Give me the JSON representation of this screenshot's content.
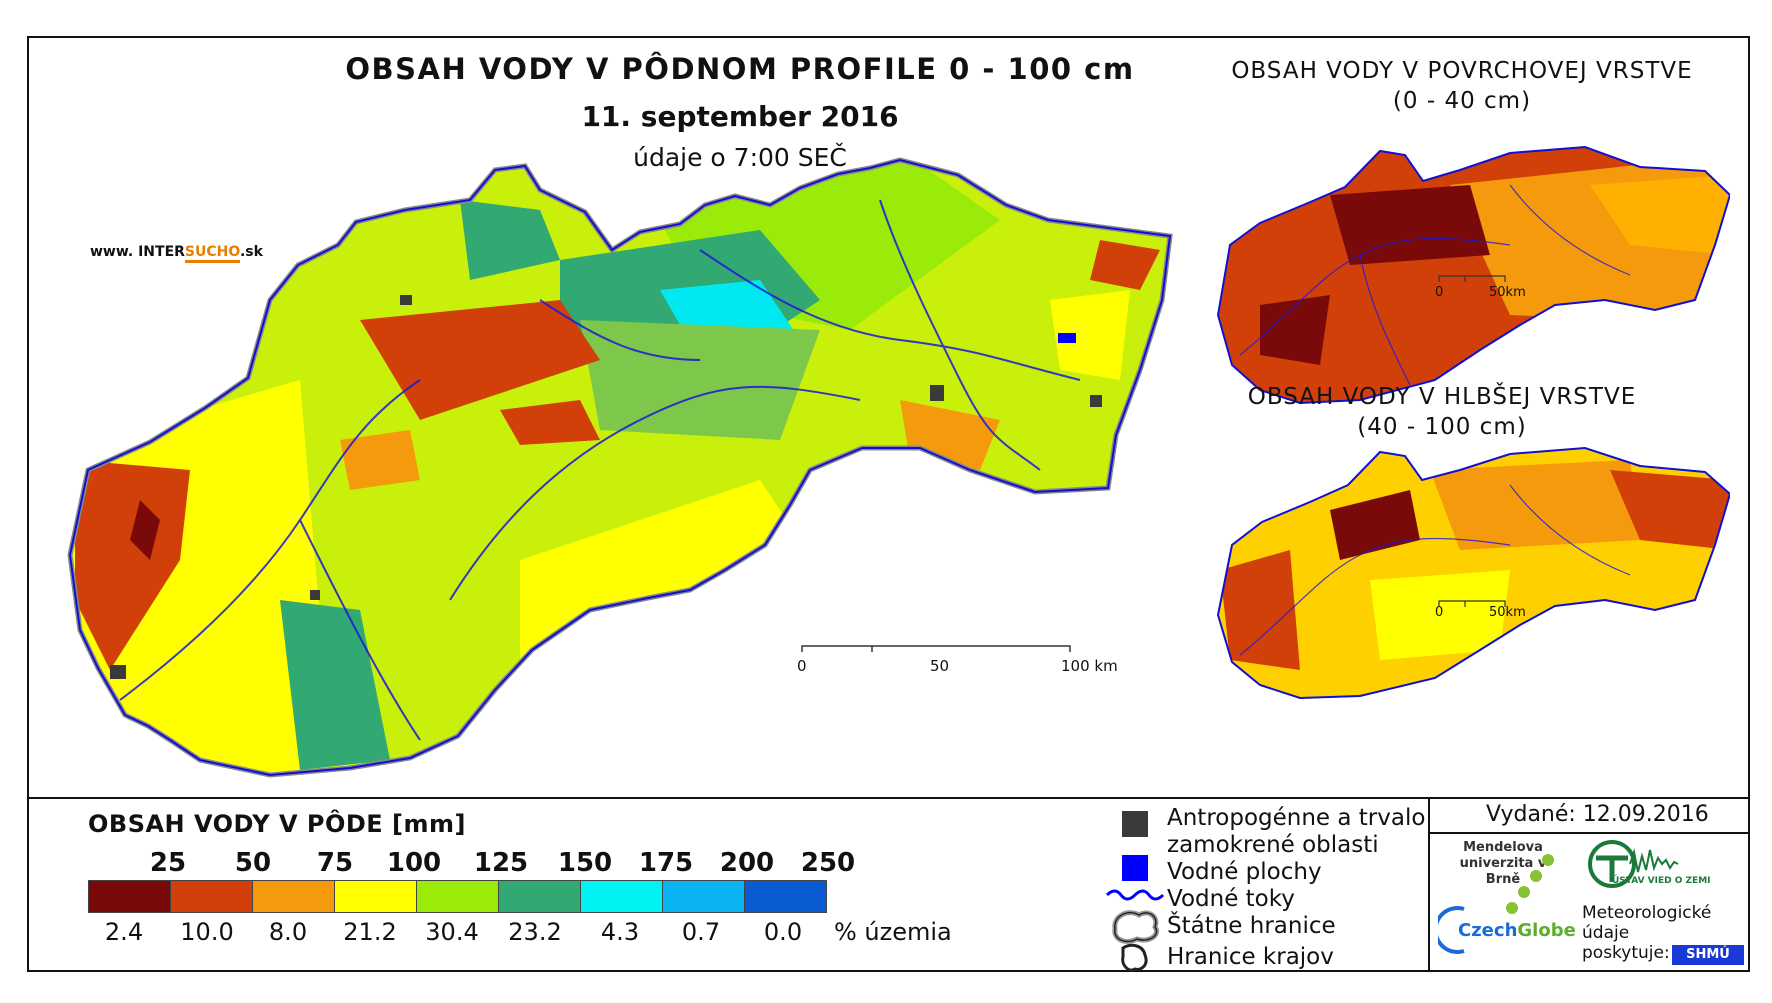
{
  "title": "OBSAH VODY V PÔDNOM PROFILE 0 - 100 cm",
  "date": "11. september 2016",
  "time_note": "údaje o 7:00 SEČ",
  "website": {
    "prefix": "www. INTER",
    "accent": "SUCHO",
    "suffix": ".sk"
  },
  "main_scale": {
    "labels": [
      "0",
      "50",
      "100 km"
    ]
  },
  "surface_map": {
    "title_line1": "OBSAH VODY V POVRCHOVEJ VRSTVE",
    "title_line2": "(0 - 40 cm)",
    "scale_labels": [
      "0",
      "50km"
    ]
  },
  "deep_map": {
    "title_line1": "OBSAH VODY V HLBŠEJ VRSTVE",
    "title_line2": "(40 - 100 cm)",
    "scale_labels": [
      "0",
      "50km"
    ]
  },
  "legend": {
    "title": "OBSAH VODY V PÔDE [mm]",
    "class_limits": [
      "25",
      "50",
      "75",
      "100",
      "125",
      "150",
      "175",
      "200",
      "250"
    ],
    "colors": [
      "#7a0a0a",
      "#d2400a",
      "#f59a0c",
      "#ffff00",
      "#9aea0a",
      "#32a872",
      "#00f2f2",
      "#0ab4f2",
      "#0a5ad2"
    ],
    "percent_values": [
      "2.4",
      "10.0",
      "8.0",
      "21.2",
      "30.4",
      "23.2",
      "4.3",
      "0.7",
      "0.0"
    ],
    "percent_unit": "% územia"
  },
  "symbols": {
    "anthropogenic_line1": "Antropogénne a trvalo",
    "anthropogenic_line2": "zamokrené oblasti",
    "water_areas": "Vodné plochy",
    "water_streams": "Vodné toky",
    "state_border": "Štátne hranice",
    "region_border": "Hranice krajov",
    "colors": {
      "anthropogenic": "#3a3a3a",
      "water_areas": "#0000ff",
      "water_streams": "#0000ff"
    }
  },
  "issued": "Vydané: 12.09.2016",
  "logos": {
    "mendel": "Mendelova univerzita v Brně",
    "czechglobe_a": "Czech",
    "czechglobe_b": "Globe",
    "ustav": "ÚSTAV VIED O ZEMI",
    "shmu": "SHMÚ"
  },
  "met_note": "Meteorologické údaje poskytuje:"
}
